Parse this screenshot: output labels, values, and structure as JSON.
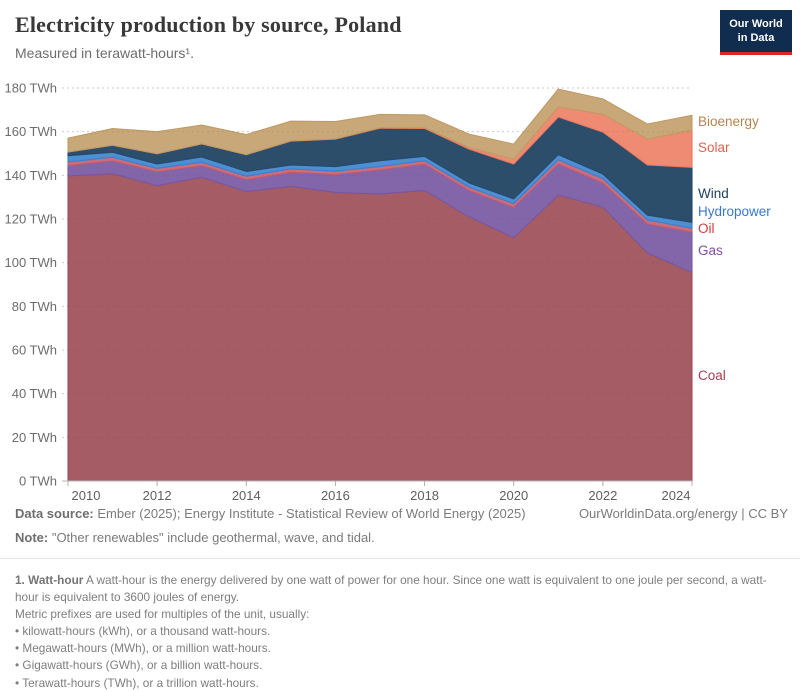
{
  "header": {
    "title": "Electricity production by source, Poland",
    "subtitle": "Measured in terawatt-hours¹.",
    "logo": {
      "line1": "Our World",
      "line2": "in Data",
      "bg": "#102d50",
      "accent": "#e02428"
    }
  },
  "chart_data": {
    "type": "area",
    "stacked": true,
    "title": "Electricity production by source, Poland",
    "unit": "TWh",
    "x": [
      2010,
      2011,
      2012,
      2013,
      2014,
      2015,
      2016,
      2017,
      2018,
      2019,
      2020,
      2021,
      2022,
      2023,
      2024
    ],
    "x_tick_years": [
      2010,
      2012,
      2014,
      2016,
      2018,
      2020,
      2022,
      2024
    ],
    "y_ticks": [
      0,
      20,
      40,
      60,
      80,
      100,
      120,
      140,
      160,
      180
    ],
    "y_tick_suffix": " TWh",
    "ylim": [
      0,
      180
    ],
    "grid": "horizontal-dashed",
    "legend_position": "right",
    "series": [
      {
        "name": "Coal",
        "fill": "#a55c64",
        "stroke": "#9d4f5b",
        "label_color": "#a73e52",
        "values": [
          139.7,
          140.8,
          135.3,
          139.2,
          132.6,
          135.0,
          132.2,
          131.5,
          133.1,
          121.0,
          111.5,
          131.0,
          125.5,
          104.5,
          95.5
        ]
      },
      {
        "name": "Gas",
        "fill": "#8366aa",
        "stroke": "#7657a2",
        "label_color": "#8150a4",
        "values": [
          4.8,
          5.8,
          6.3,
          5.2,
          5.4,
          6.4,
          8.2,
          11.0,
          12.0,
          12.0,
          13.8,
          14.2,
          11.0,
          13.2,
          18.5
        ]
      },
      {
        "name": "Oil",
        "fill": "#ca6e7e",
        "stroke": "#c25a6e",
        "label_color": "#cf3e44",
        "values": [
          1.6,
          1.7,
          1.6,
          1.6,
          1.6,
          1.6,
          1.5,
          1.6,
          1.6,
          1.6,
          1.7,
          1.9,
          2.0,
          1.9,
          1.8
        ]
      },
      {
        "name": "Hydropower",
        "fill": "#4d8fd3",
        "stroke": "#3b7fce",
        "label_color": "#3779d2",
        "values": [
          2.9,
          2.3,
          2.0,
          2.4,
          2.2,
          1.8,
          2.1,
          2.6,
          2.0,
          2.0,
          2.2,
          2.4,
          2.1,
          2.2,
          2.7
        ]
      },
      {
        "name": "Wind",
        "fill": "#2c4e6b",
        "stroke": "#25496b",
        "label_color": "#1c3d5d",
        "values": [
          1.7,
          3.2,
          4.7,
          6.0,
          7.7,
          10.9,
          12.6,
          14.9,
          12.8,
          15.4,
          16.0,
          17.2,
          19.2,
          23.0,
          25.2
        ]
      },
      {
        "name": "Solar",
        "fill": "#ee8b72",
        "stroke": "#e87a5e",
        "label_color": "#e4604e",
        "values": [
          0.0,
          0.0,
          0.0,
          0.0,
          0.0,
          0.1,
          0.1,
          0.2,
          0.3,
          0.8,
          2.2,
          4.6,
          8.2,
          11.8,
          17.0
        ]
      },
      {
        "name": "Bioenergy",
        "fill": "#c8a779",
        "stroke": "#bf9c66",
        "label_color": "#b7854f",
        "values": [
          6.3,
          7.6,
          10.1,
          8.6,
          9.2,
          9.0,
          7.9,
          6.1,
          5.9,
          6.1,
          6.9,
          8.2,
          7.0,
          6.9,
          6.8
        ]
      }
    ]
  },
  "footer": {
    "datasource_label": "Data source:",
    "datasource": " Ember (2025); Energy Institute - Statistical Review of World Energy (2025)",
    "link": "OurWorldinData.org/energy | CC BY",
    "note_label": "Note:",
    "note": " \"Other renewables\" include geothermal, wave, and tidal."
  },
  "footnote": {
    "term_bold": "1. Watt-hour",
    "term_text": " A watt-hour is the energy delivered by one watt of power for one hour. Since one watt is equivalent to one joule per second, a watt-hour is equivalent to 3600 joules of energy.",
    "prefix_line": "Metric prefixes are used for multiples of the unit, usually:",
    "bullet_char": "•",
    "bullets": [
      "kilowatt-hours (kWh), or a thousand watt-hours.",
      "Megawatt-hours (MWh), or a million watt-hours.",
      "Gigawatt-hours (GWh), or a billion watt-hours.",
      "Terawatt-hours (TWh), or a trillion watt-hours."
    ]
  }
}
